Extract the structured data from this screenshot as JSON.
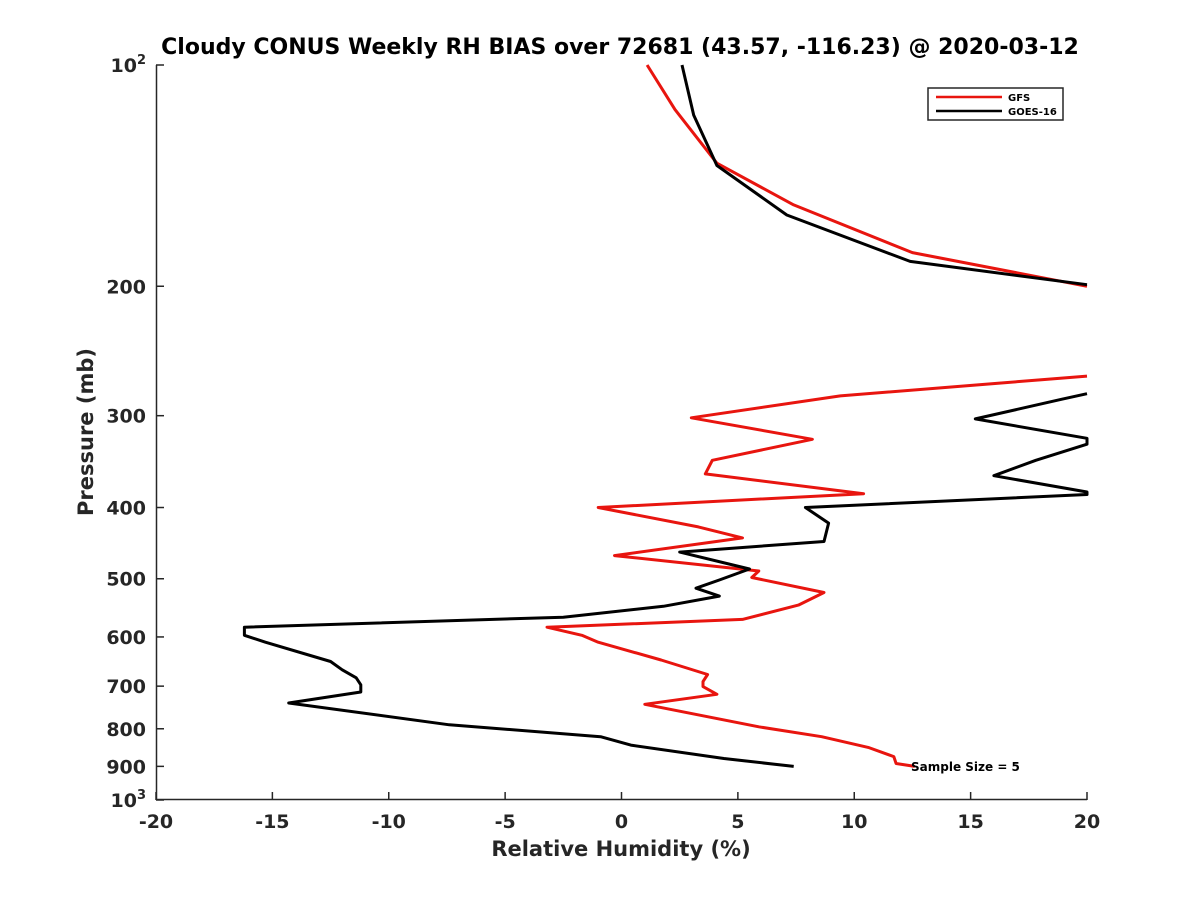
{
  "chart_data": {
    "type": "line",
    "title": "Cloudy CONUS Weekly RH BIAS over 72681 (43.57, -116.23) @ 2020-03-12",
    "xlabel": "Relative Humidity (%)",
    "ylabel": "Pressure (mb)",
    "xlim": [
      -20,
      20
    ],
    "ylim": [
      100,
      1000
    ],
    "y_scale": "log",
    "y_reversed": true,
    "grid": false,
    "legend_position": "top-right",
    "annotation": "Sample Size = 5",
    "x_ticks": [
      "-20",
      "-15",
      "-10",
      "-5",
      "0",
      "5",
      "10",
      "15",
      "20"
    ],
    "x_tick_values": [
      -20,
      -15,
      -10,
      -5,
      0,
      5,
      10,
      15,
      20
    ],
    "y_ticks": [
      {
        "value": 100,
        "base": "10",
        "exp": "2"
      },
      {
        "value": 200,
        "label": "200"
      },
      {
        "value": 300,
        "label": "300"
      },
      {
        "value": 400,
        "label": "400"
      },
      {
        "value": 500,
        "label": "500"
      },
      {
        "value": 600,
        "label": "600"
      },
      {
        "value": 700,
        "label": "700"
      },
      {
        "value": 800,
        "label": "800"
      },
      {
        "value": 900,
        "label": "900"
      },
      {
        "value": 1000,
        "base": "10",
        "exp": "3"
      }
    ],
    "series": [
      {
        "name": "GFS",
        "color": "#e8150f",
        "segments": [
          [
            [
              1.1,
              100
            ],
            [
              2.3,
              115
            ],
            [
              4.1,
              136
            ],
            [
              7.4,
              155
            ],
            [
              12.5,
              180
            ],
            [
              20.0,
              200
            ]
          ],
          [
            [
              20.0,
              265
            ],
            [
              9.4,
              282
            ],
            [
              3.0,
              302
            ],
            [
              8.2,
              323
            ],
            [
              3.9,
              345
            ],
            [
              3.6,
              360
            ],
            [
              10.4,
              383
            ],
            [
              -1.0,
              400
            ],
            [
              3.3,
              425
            ],
            [
              5.2,
              440
            ],
            [
              -0.3,
              465
            ],
            [
              5.9,
              488
            ],
            [
              5.6,
              498
            ],
            [
              8.7,
              522
            ],
            [
              7.6,
              543
            ],
            [
              5.2,
              568
            ],
            [
              -3.2,
              582
            ],
            [
              -1.7,
              597
            ],
            [
              -1.0,
              610
            ],
            [
              1.7,
              645
            ],
            [
              3.7,
              675
            ],
            [
              3.5,
              690
            ],
            [
              3.5,
              701
            ],
            [
              4.1,
              718
            ],
            [
              1.0,
              741
            ],
            [
              5.9,
              795
            ],
            [
              8.6,
              820
            ],
            [
              10.6,
              848
            ],
            [
              11.7,
              873
            ],
            [
              11.8,
              892
            ],
            [
              12.6,
              900
            ]
          ]
        ]
      },
      {
        "name": "GOES-16",
        "color": "#000000",
        "segments": [
          [
            [
              2.6,
              100
            ],
            [
              3.1,
              117
            ],
            [
              4.1,
              137
            ],
            [
              7.1,
              160
            ],
            [
              12.4,
              185
            ],
            [
              20.0,
              199
            ]
          ],
          [
            [
              20.0,
              280
            ],
            [
              18.9,
              285
            ],
            [
              15.2,
              303
            ],
            [
              20.0,
              322
            ],
            [
              20.0,
              328
            ],
            [
              17.8,
              345
            ],
            [
              16.0,
              362
            ],
            [
              20.0,
              381
            ],
            [
              20.0,
              384
            ],
            [
              7.9,
              400
            ],
            [
              8.9,
              420
            ],
            [
              8.7,
              445
            ],
            [
              2.5,
              460
            ],
            [
              5.5,
              485
            ],
            [
              4.2,
              502
            ],
            [
              3.2,
              515
            ],
            [
              4.2,
              528
            ],
            [
              1.8,
              545
            ],
            [
              -2.5,
              564
            ],
            [
              -16.2,
              582
            ],
            [
              -16.2,
              597
            ],
            [
              -15.3,
              610
            ],
            [
              -12.5,
              648
            ],
            [
              -12.0,
              665
            ],
            [
              -11.4,
              682
            ],
            [
              -11.2,
              697
            ],
            [
              -11.2,
              713
            ],
            [
              -14.3,
              738
            ],
            [
              -7.4,
              790
            ],
            [
              -0.9,
              820
            ],
            [
              0.4,
              842
            ],
            [
              4.4,
              878
            ],
            [
              7.4,
              900
            ]
          ]
        ]
      }
    ]
  }
}
